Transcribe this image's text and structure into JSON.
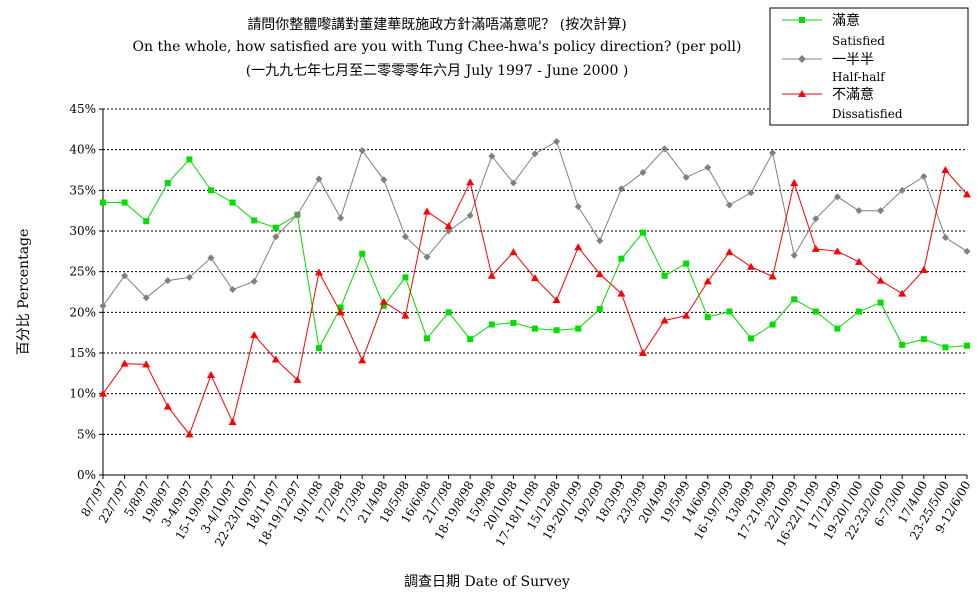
{
  "chart_data": {
    "type": "line",
    "title": {
      "line1": "請問你整體嚟講對董建華既施政方針滿唔滿意呢？ (按次計算)",
      "line2": "On the whole, how satisfied are you with Tung Chee-hwa's policy direction? (per poll)",
      "line3": "(一九九七年七月至二零零零年六月 July 1997 - June 2000 )"
    },
    "xlabel": "調查日期 Date of Survey",
    "ylabel": "百分比 Percentage",
    "ylim": [
      0,
      45
    ],
    "yticks": [
      "0%",
      "5%",
      "10%",
      "15%",
      "20%",
      "25%",
      "30%",
      "35%",
      "40%",
      "45%"
    ],
    "grid": true,
    "legend_position": "top-right",
    "categories": [
      "8/7/97",
      "22/7/97",
      "5/8/97",
      "19/8/97",
      "3-4/9/97",
      "15-19/9/97",
      "3-4/10/97",
      "22-23/10/97",
      "18/11/97",
      "18-19/12/97",
      "19/1/98",
      "17/2/98",
      "17/3/98",
      "21/4/98",
      "18/5/98",
      "16/6/98",
      "21/7/98",
      "18-19/8/98",
      "15/9/98",
      "20/10/98",
      "17-18/11/98",
      "15/12/98",
      "19-20/1/99",
      "19/2/99",
      "18/3/99",
      "23/3/99",
      "20/4/99",
      "19/5/99",
      "14/6/99",
      "16-19/7/99",
      "13/8/99",
      "17-21/9/99",
      "22/10/99",
      "16-22/11/99",
      "17/12/99",
      "19-20/1/00",
      "22-23/2/00",
      "6-7/3/00",
      "17/4/00",
      "23-25/5/00",
      "9-12/6/00"
    ],
    "series": [
      {
        "name": "滿意",
        "name_en": "Satisfied",
        "color": "#00dd00",
        "marker": "square",
        "values": [
          33.5,
          33.5,
          31.2,
          35.9,
          38.8,
          35.0,
          33.5,
          31.3,
          30.4,
          32.0,
          15.6,
          20.6,
          27.2,
          20.8,
          24.3,
          16.8,
          20.0,
          16.7,
          18.5,
          18.7,
          18.0,
          17.8,
          18.0,
          20.4,
          26.6,
          29.8,
          24.5,
          26.0,
          19.4,
          20.1,
          16.8,
          18.5,
          21.6,
          20.1,
          18.0,
          20.1,
          21.2,
          16.0,
          16.7,
          15.7,
          15.9
        ]
      },
      {
        "name": "一半半",
        "name_en": "Half-half",
        "color": "#808080",
        "marker": "diamond",
        "values": [
          20.8,
          24.5,
          21.8,
          23.9,
          24.3,
          26.7,
          22.8,
          23.8,
          29.3,
          32.0,
          36.4,
          31.6,
          39.9,
          36.3,
          29.3,
          26.8,
          30.0,
          31.9,
          39.2,
          35.9,
          39.5,
          41.0,
          33.0,
          28.8,
          35.2,
          37.2,
          40.1,
          36.6,
          37.8,
          33.2,
          34.7,
          39.6,
          27.0,
          31.5,
          34.2,
          32.5,
          32.5,
          35.0,
          36.7,
          29.2,
          27.5
        ]
      },
      {
        "name": "不滿意",
        "name_en": "Dissatisfied",
        "color": "#ff0000",
        "marker": "triangle",
        "values": [
          10.0,
          13.7,
          13.6,
          8.4,
          5.0,
          12.3,
          6.5,
          17.2,
          14.2,
          11.7,
          24.9,
          20.0,
          14.1,
          21.3,
          19.6,
          32.4,
          30.6,
          36.0,
          24.5,
          27.4,
          24.2,
          21.5,
          28.0,
          24.7,
          22.3,
          15.0,
          19.0,
          19.6,
          23.8,
          27.4,
          25.6,
          24.4,
          35.9,
          27.8,
          27.5,
          26.2,
          23.9,
          22.3,
          25.2,
          37.5,
          34.5
        ]
      }
    ]
  }
}
